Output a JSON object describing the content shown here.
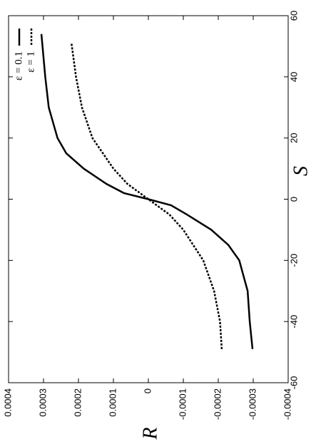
{
  "chart_data": {
    "type": "line",
    "x_label": "S",
    "y_label": "R",
    "xlim": [
      -60,
      60
    ],
    "xticks": [
      -60,
      -40,
      -20,
      0,
      20,
      40,
      60
    ],
    "ylim": [
      -0.0004,
      0.0004
    ],
    "yticks": [
      -0.0004,
      -0.0003,
      -0.0002,
      -0.0001,
      0,
      0.0001,
      0.0002,
      0.0003,
      0.0004
    ],
    "legend": "upper right",
    "grid": false,
    "series": [
      {
        "name": "ε = 0.1",
        "color": "#000000",
        "style": "solid",
        "x": [
          -49,
          -40,
          -30,
          -20,
          -15,
          -10,
          -5,
          -2,
          0,
          2,
          5,
          10,
          15,
          20,
          30,
          40,
          54
        ],
        "values": [
          -0.000298,
          -0.00029,
          -0.000284,
          -0.00026,
          -0.000229,
          -0.00018,
          -0.00011,
          -6.5e-05,
          0,
          7e-05,
          0.00012,
          0.000185,
          0.000235,
          0.00026,
          0.000285,
          0.000295,
          0.000306
        ]
      },
      {
        "name": "ε = 1",
        "color": "#000000",
        "style": "dotted",
        "x": [
          -49,
          -40,
          -30,
          -20,
          -10,
          -5,
          0,
          5,
          10,
          20,
          30,
          40,
          51
        ],
        "values": [
          -0.00021,
          -0.000205,
          -0.000188,
          -0.000157,
          -0.0001,
          -6e-05,
          0,
          6e-05,
          0.0001,
          0.00016,
          0.00019,
          0.000207,
          0.00022
        ]
      }
    ]
  }
}
